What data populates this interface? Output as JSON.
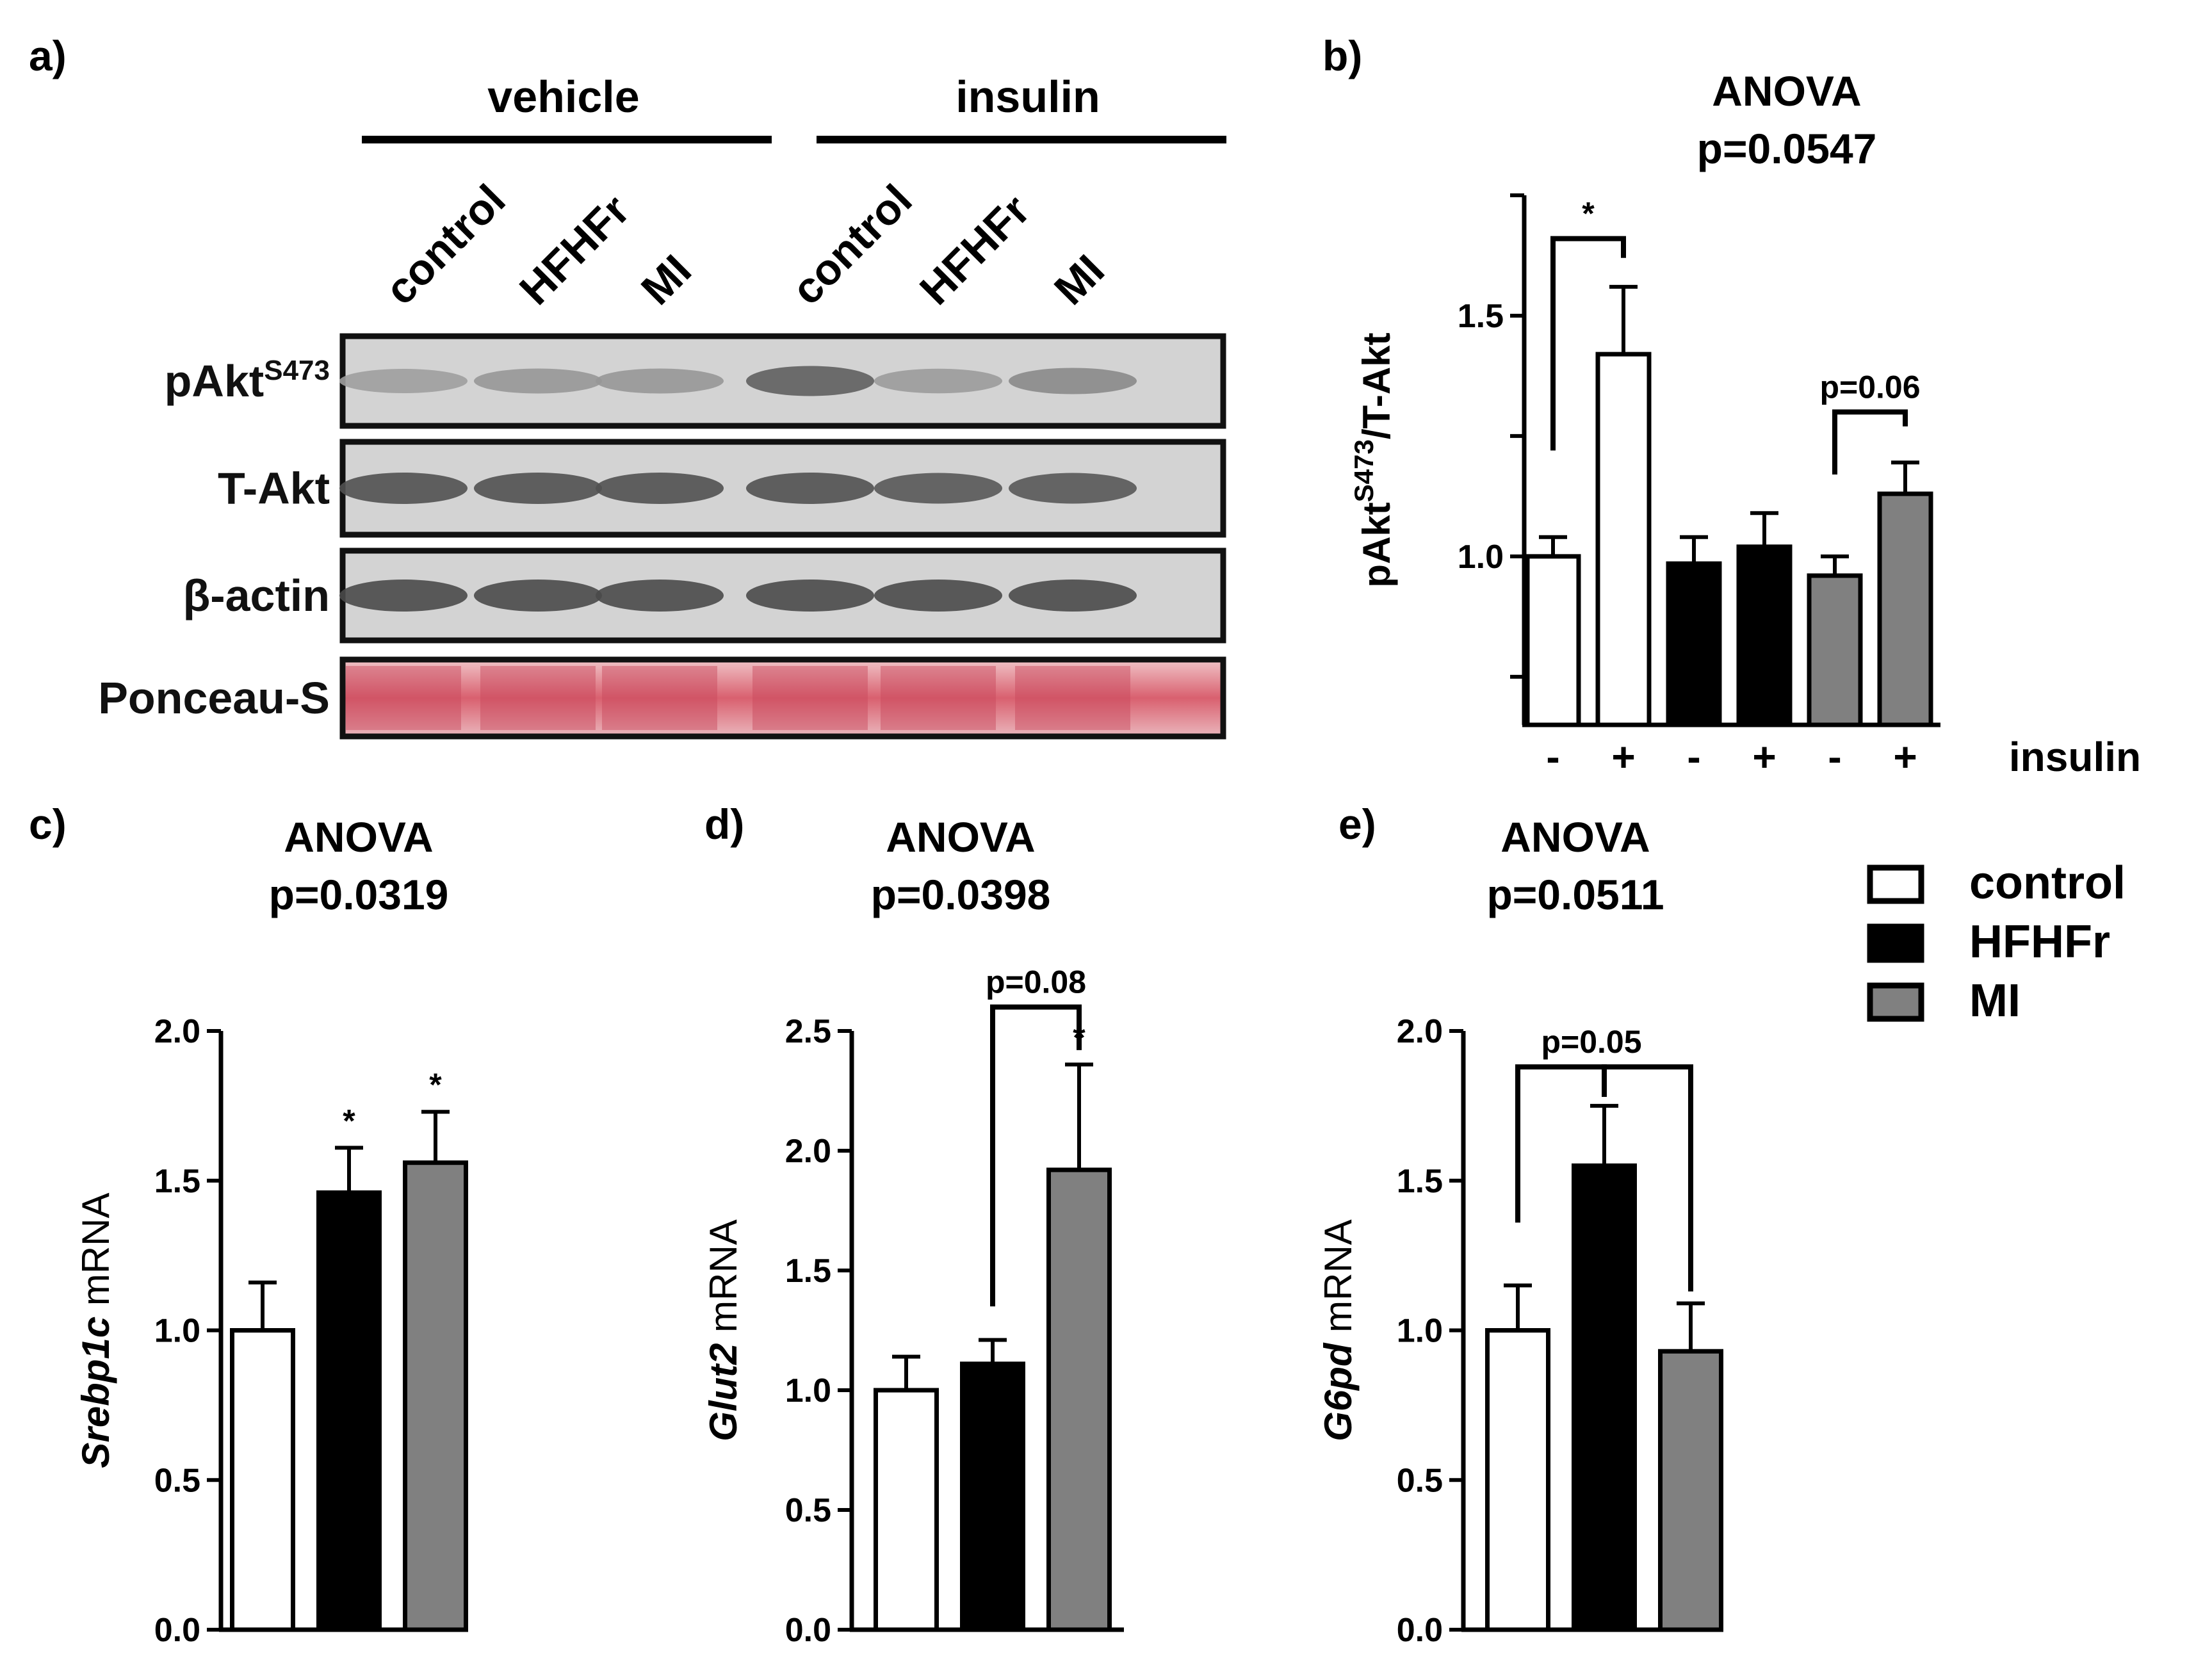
{
  "panel_labels": {
    "a": "a)",
    "b": "b)",
    "c": "c)",
    "d": "d)",
    "e": "e)"
  },
  "colors": {
    "control": "#ffffff",
    "HFHFr": "#000000",
    "MI": "#808080",
    "ponceau": "#d9606f"
  },
  "legend": {
    "items": [
      {
        "label": "control",
        "color": "#ffffff"
      },
      {
        "label": "HFHFr",
        "color": "#000000"
      },
      {
        "label": "MI",
        "color": "#808080"
      }
    ]
  },
  "blot": {
    "groups": [
      "vehicle",
      "insulin"
    ],
    "lanes": [
      "control",
      "HFHFr",
      "MI",
      "control",
      "HFHFr",
      "MI"
    ],
    "rows": [
      {
        "label": "pAkt",
        "superscript": "S473",
        "intensity": [
          0.3,
          0.35,
          0.35,
          0.75,
          0.32,
          0.45
        ]
      },
      {
        "label": "T-Akt",
        "superscript": "",
        "intensity": [
          0.85,
          0.85,
          0.85,
          0.85,
          0.8,
          0.8
        ]
      },
      {
        "label": "β-actin",
        "superscript": "",
        "intensity": [
          0.9,
          0.9,
          0.9,
          0.9,
          0.9,
          0.9
        ]
      },
      {
        "label": "Ponceau-S",
        "superscript": "",
        "intensity": [
          1,
          1,
          1,
          1,
          1,
          1
        ]
      }
    ]
  },
  "chart_data": [
    {
      "panel": "b",
      "type": "bar",
      "title": "ANOVA",
      "subtitle": "p=0.0547",
      "ylabel": "pAkt",
      "ylabel_sup": "S473",
      "ylabel_suffix": "/T-Akt",
      "ylim": [
        0.65,
        1.75
      ],
      "yticks": [
        0.75,
        1.0,
        1.25,
        1.5,
        1.75
      ],
      "ytick_labels": [
        "",
        "1.0",
        "",
        "1.5",
        ""
      ],
      "categories": [
        "control -",
        "control +",
        "HFHFr -",
        "HFHFr +",
        "MI -",
        "MI +"
      ],
      "x_labels": [
        "-",
        "+",
        "-",
        "+",
        "-",
        "+"
      ],
      "x_axis_label": "insulin",
      "values": [
        1.0,
        1.42,
        0.985,
        1.02,
        0.96,
        1.13
      ],
      "errors": [
        0.04,
        0.14,
        0.055,
        0.07,
        0.04,
        0.065
      ],
      "bar_colors": [
        "#ffffff",
        "#ffffff",
        "#000000",
        "#000000",
        "#808080",
        "#808080"
      ],
      "annotations": [
        {
          "from": 0,
          "to": 1,
          "text": "*",
          "y": 1.66,
          "tick_ends": [
            1.22,
            1.62
          ]
        },
        {
          "from": 4,
          "to": 5,
          "text": "p=0.06",
          "y": 1.3,
          "tick_ends": [
            1.17,
            1.27
          ]
        }
      ]
    },
    {
      "panel": "c",
      "type": "bar",
      "title": "ANOVA",
      "subtitle": "p=0.0319",
      "ylabel_italic": "Srebp1c",
      "ylabel_rest": " mRNA",
      "ylim": [
        0,
        2.0
      ],
      "yticks": [
        0,
        0.5,
        1.0,
        1.5,
        2.0
      ],
      "ytick_labels": [
        "0.0",
        "0.5",
        "1.0",
        "1.5",
        "2.0"
      ],
      "categories": [
        "control",
        "HFHFr",
        "MI"
      ],
      "values": [
        1.0,
        1.46,
        1.56
      ],
      "errors": [
        0.16,
        0.15,
        0.17
      ],
      "bar_colors": [
        "#ffffff",
        "#000000",
        "#808080"
      ],
      "stars": [
        null,
        "*",
        "*"
      ]
    },
    {
      "panel": "d",
      "type": "bar",
      "title": "ANOVA",
      "subtitle": "p=0.0398",
      "ylabel_italic": "Glut2",
      "ylabel_rest": " mRNA",
      "ylim": [
        0,
        2.5
      ],
      "yticks": [
        0,
        0.5,
        1.0,
        1.5,
        2.0,
        2.5
      ],
      "ytick_labels": [
        "0.0",
        "0.5",
        "1.0",
        "1.5",
        "2.0",
        "2.5"
      ],
      "categories": [
        "control",
        "HFHFr",
        "MI"
      ],
      "values": [
        1.0,
        1.11,
        1.92
      ],
      "errors": [
        0.14,
        0.1,
        0.44
      ],
      "bar_colors": [
        "#ffffff",
        "#000000",
        "#808080"
      ],
      "stars": [
        null,
        null,
        "*"
      ],
      "annotations": [
        {
          "from": 1,
          "to": 2,
          "text": "p=0.08",
          "y": 2.6,
          "tick_ends": [
            1.35,
            2.42
          ]
        }
      ]
    },
    {
      "panel": "e",
      "type": "bar",
      "title": "ANOVA",
      "subtitle": "p=0.0511",
      "ylabel_italic": "G6pd",
      "ylabel_rest": " mRNA",
      "ylim": [
        0,
        2.0
      ],
      "yticks": [
        0,
        0.5,
        1.0,
        1.5,
        2.0
      ],
      "ytick_labels": [
        "0.0",
        "0.5",
        "1.0",
        "1.5",
        "2.0"
      ],
      "categories": [
        "control",
        "HFHFr",
        "MI"
      ],
      "values": [
        1.0,
        1.55,
        0.93
      ],
      "errors": [
        0.15,
        0.2,
        0.16
      ],
      "bar_colors": [
        "#ffffff",
        "#000000",
        "#808080"
      ],
      "stars": [
        null,
        null,
        null
      ],
      "annotations": [
        {
          "from": 0,
          "to": 1,
          "text": "p=0.05",
          "y": 1.88,
          "tick_ends": [
            1.36,
            1.78
          ],
          "label_center": 1
        },
        {
          "from": 1,
          "to": 2,
          "text": "",
          "y": 1.88,
          "tick_ends": [
            1.78,
            1.13
          ]
        }
      ]
    }
  ]
}
